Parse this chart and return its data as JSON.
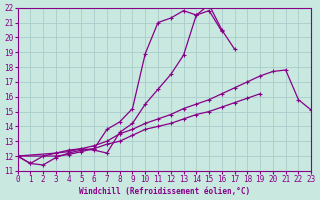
{
  "xlabel": "Windchill (Refroidissement éolien,°C)",
  "xlim": [
    0,
    23
  ],
  "ylim": [
    11,
    22
  ],
  "xticks": [
    0,
    1,
    2,
    3,
    4,
    5,
    6,
    7,
    8,
    9,
    10,
    11,
    12,
    13,
    14,
    15,
    16,
    17,
    18,
    19,
    20,
    21,
    22,
    23
  ],
  "yticks": [
    11,
    12,
    13,
    14,
    15,
    16,
    17,
    18,
    19,
    20,
    21,
    22
  ],
  "background_color": "#c8e8e0",
  "line_color": "#880088",
  "grid_color": "#aacccc",
  "lines": [
    {
      "x": [
        0,
        1,
        2,
        3,
        4,
        5,
        6,
        7,
        8,
        9,
        10,
        11,
        12,
        13,
        14,
        15,
        16,
        17
      ],
      "y": [
        12.0,
        11.5,
        11.4,
        11.9,
        12.2,
        12.4,
        12.5,
        13.8,
        14.3,
        15.2,
        18.9,
        21.0,
        21.3,
        21.8,
        21.5,
        22.2,
        20.5,
        19.2
      ]
    },
    {
      "x": [
        0,
        1,
        2,
        3,
        4,
        5,
        6,
        7,
        8,
        9,
        10,
        11,
        12,
        13,
        14,
        15,
        16
      ],
      "y": [
        12.0,
        11.5,
        12.0,
        12.2,
        12.4,
        12.5,
        12.4,
        12.2,
        13.6,
        14.2,
        15.5,
        16.5,
        17.5,
        18.8,
        21.5,
        21.8,
        20.4
      ]
    },
    {
      "x": [
        0,
        3,
        4,
        5,
        6,
        7,
        8,
        9,
        10,
        11,
        12,
        13,
        14,
        15,
        16,
        17,
        18,
        19,
        20,
        21,
        22,
        23
      ],
      "y": [
        12.0,
        12.2,
        12.3,
        12.5,
        12.7,
        13.0,
        13.5,
        13.8,
        14.2,
        14.5,
        14.8,
        15.2,
        15.5,
        15.8,
        16.2,
        16.6,
        17.0,
        17.4,
        17.7,
        17.8,
        15.8,
        15.1
      ]
    },
    {
      "x": [
        0,
        3,
        4,
        5,
        6,
        7,
        8,
        9,
        10,
        11,
        12,
        13,
        14,
        15,
        16,
        17,
        18,
        19
      ],
      "y": [
        12.0,
        12.0,
        12.1,
        12.3,
        12.5,
        12.8,
        13.0,
        13.4,
        13.8,
        14.0,
        14.2,
        14.5,
        14.8,
        15.0,
        15.3,
        15.6,
        15.9,
        16.2
      ]
    }
  ]
}
